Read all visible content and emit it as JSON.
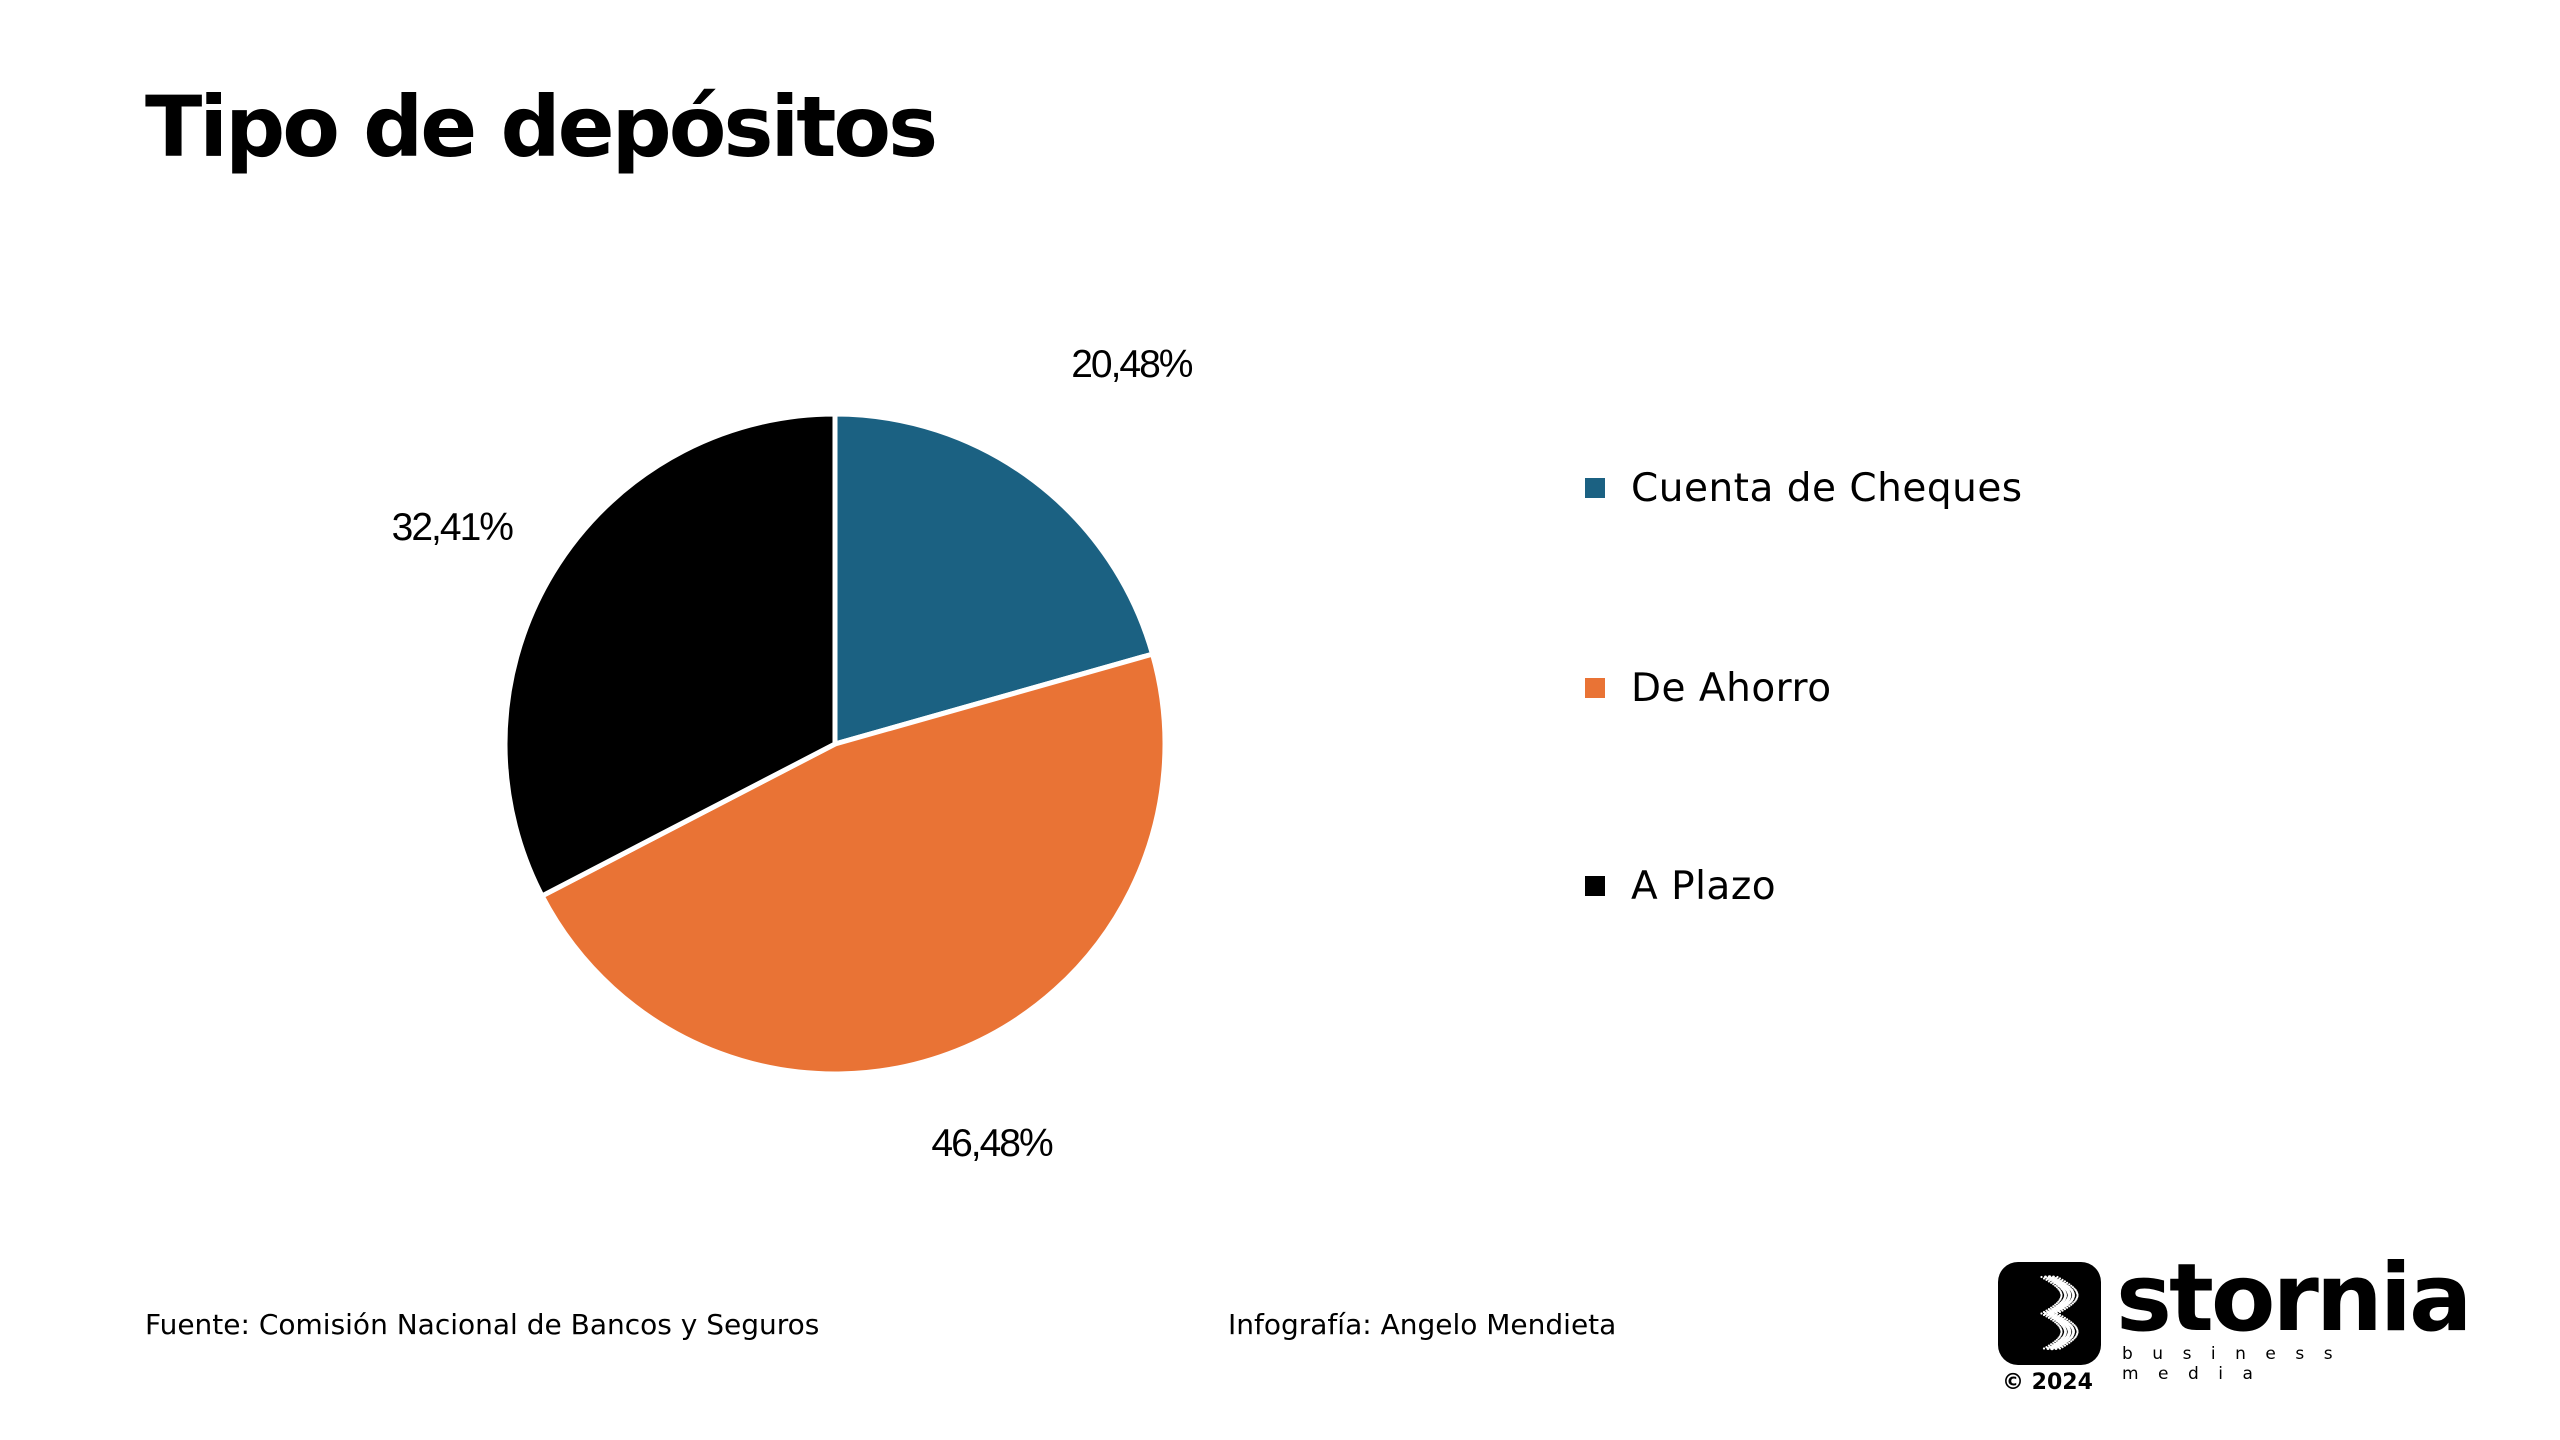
{
  "page": {
    "title": "Tipo de depósitos",
    "source": "Fuente: Comisión Nacional de Bancos y Seguros",
    "credit": "Infografía: Angelo Mendieta"
  },
  "chart_data": {
    "type": "pie",
    "title": "Tipo de depósitos",
    "categories": [
      "Cuenta de Cheques",
      "De Ahorro",
      "A Plazo"
    ],
    "values": [
      20.48,
      46.48,
      32.41
    ],
    "value_labels": [
      "20,48%",
      "46,48%",
      "32,41%"
    ],
    "colors": [
      "#1b6182",
      "#e97335",
      "#000000"
    ],
    "legend_position": "right",
    "start": "12 o'clock, clockwise"
  },
  "logo": {
    "wordmark": "stornia",
    "tagline": "business media",
    "year": "© 2024",
    "icon": "dotted-s-icon"
  }
}
